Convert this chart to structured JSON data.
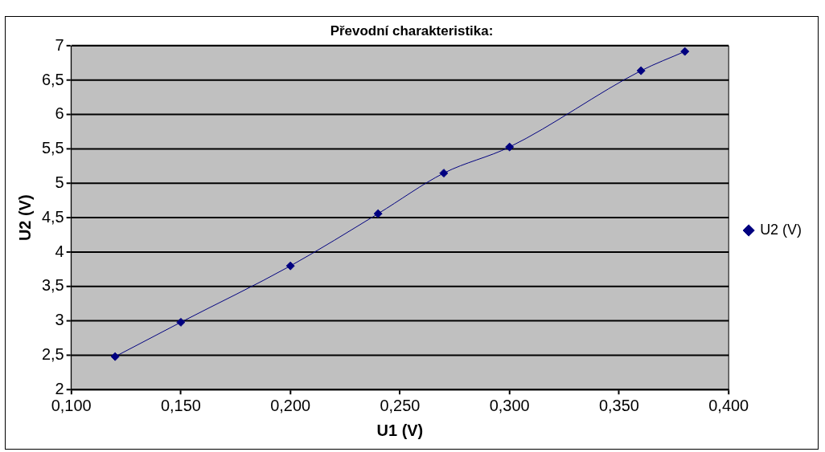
{
  "chart_data": {
    "type": "line",
    "title": "Převodní charakteristika:",
    "xlabel": "U1 (V)",
    "ylabel": "U2 (V)",
    "x": [
      0.12,
      0.15,
      0.2,
      0.24,
      0.27,
      0.3,
      0.36,
      0.38
    ],
    "series": [
      {
        "name": "U2 (V)",
        "color": "#000080",
        "values": [
          2.48,
          2.98,
          3.8,
          4.56,
          5.15,
          5.53,
          6.64,
          6.92
        ]
      }
    ],
    "xlim": [
      0.1,
      0.4
    ],
    "xticks": [
      {
        "value": 0.1,
        "label": "0,100"
      },
      {
        "value": 0.15,
        "label": "0,150"
      },
      {
        "value": 0.2,
        "label": "0,200"
      },
      {
        "value": 0.25,
        "label": "0,250"
      },
      {
        "value": 0.3,
        "label": "0,300"
      },
      {
        "value": 0.35,
        "label": "0,350"
      },
      {
        "value": 0.4,
        "label": "0,400"
      }
    ],
    "ylim": [
      2,
      7
    ],
    "yticks": [
      2,
      {
        "value": 2.5,
        "label": "2,5"
      },
      3,
      {
        "value": 3.5,
        "label": "3,5"
      },
      4,
      {
        "value": 4.5,
        "label": "4,5"
      },
      5,
      {
        "value": 5.5,
        "label": "5,5"
      },
      6,
      {
        "value": 6.5,
        "label": "6,5"
      },
      7
    ],
    "grid": "y",
    "legend": "right",
    "marker": "diamond",
    "line_style": "solid"
  }
}
